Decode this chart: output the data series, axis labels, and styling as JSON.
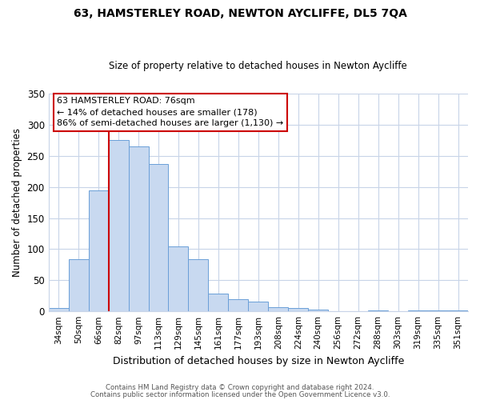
{
  "title": "63, HAMSTERLEY ROAD, NEWTON AYCLIFFE, DL5 7QA",
  "subtitle": "Size of property relative to detached houses in Newton Aycliffe",
  "xlabel": "Distribution of detached houses by size in Newton Aycliffe",
  "ylabel": "Number of detached properties",
  "bar_color": "#c8d9f0",
  "bar_edge_color": "#6a9fd8",
  "categories": [
    "34sqm",
    "50sqm",
    "66sqm",
    "82sqm",
    "97sqm",
    "113sqm",
    "129sqm",
    "145sqm",
    "161sqm",
    "177sqm",
    "193sqm",
    "208sqm",
    "224sqm",
    "240sqm",
    "256sqm",
    "272sqm",
    "288sqm",
    "303sqm",
    "319sqm",
    "335sqm",
    "351sqm"
  ],
  "values": [
    6,
    84,
    195,
    275,
    265,
    237,
    105,
    84,
    28,
    20,
    16,
    7,
    5,
    3,
    0,
    0,
    1,
    0,
    1,
    1,
    2
  ],
  "ylim": [
    0,
    350
  ],
  "yticks": [
    0,
    50,
    100,
    150,
    200,
    250,
    300,
    350
  ],
  "marker_label_line1": "63 HAMSTERLEY ROAD: 76sqm",
  "marker_label_line2": "← 14% of detached houses are smaller (178)",
  "marker_label_line3": "86% of semi-detached houses are larger (1,130) →",
  "vline_color": "#cc0000",
  "box_edge_color": "#cc0000",
  "footnote1": "Contains HM Land Registry data © Crown copyright and database right 2024.",
  "footnote2": "Contains public sector information licensed under the Open Government Licence v3.0.",
  "background_color": "#ffffff",
  "grid_color": "#c8d4e8"
}
